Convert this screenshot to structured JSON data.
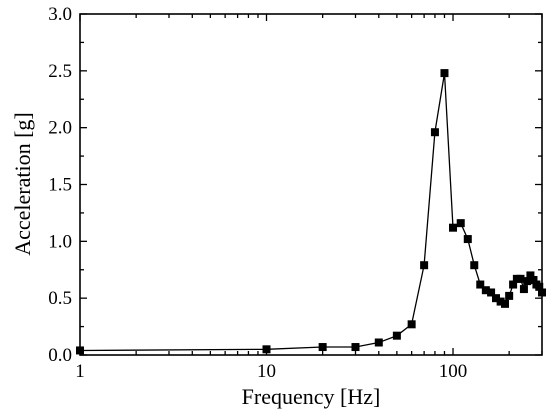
{
  "chart_data": {
    "type": "line",
    "xlabel": "Frequency [Hz]",
    "ylabel": "Acceleration [g]",
    "xscale": "log",
    "xlim": [
      1,
      300
    ],
    "ylim": [
      0,
      3.0
    ],
    "grid": false,
    "x_ticks": [
      1,
      10,
      100
    ],
    "x_tick_labels": [
      "1",
      "10",
      "100"
    ],
    "y_ticks": [
      0.0,
      0.5,
      1.0,
      1.5,
      2.0,
      2.5,
      3.0
    ],
    "y_tick_labels": [
      "0.0",
      "0.5",
      "1.0",
      "1.5",
      "2.0",
      "2.5",
      "3.0"
    ],
    "series": [
      {
        "marker": "square",
        "color": "#000000",
        "x": [
          1,
          10,
          20,
          30,
          40,
          50,
          60,
          70,
          80,
          90,
          100,
          110,
          120,
          130,
          140,
          150,
          160,
          170,
          180,
          190,
          200,
          210,
          220,
          230,
          240,
          250,
          260,
          270,
          280,
          290,
          300
        ],
        "y": [
          0.04,
          0.05,
          0.07,
          0.07,
          0.11,
          0.17,
          0.27,
          0.79,
          1.96,
          2.48,
          1.12,
          1.16,
          1.02,
          0.79,
          0.62,
          0.57,
          0.55,
          0.5,
          0.47,
          0.45,
          0.52,
          0.62,
          0.67,
          0.67,
          0.58,
          0.65,
          0.7,
          0.66,
          0.62,
          0.6,
          0.55
        ]
      }
    ]
  }
}
